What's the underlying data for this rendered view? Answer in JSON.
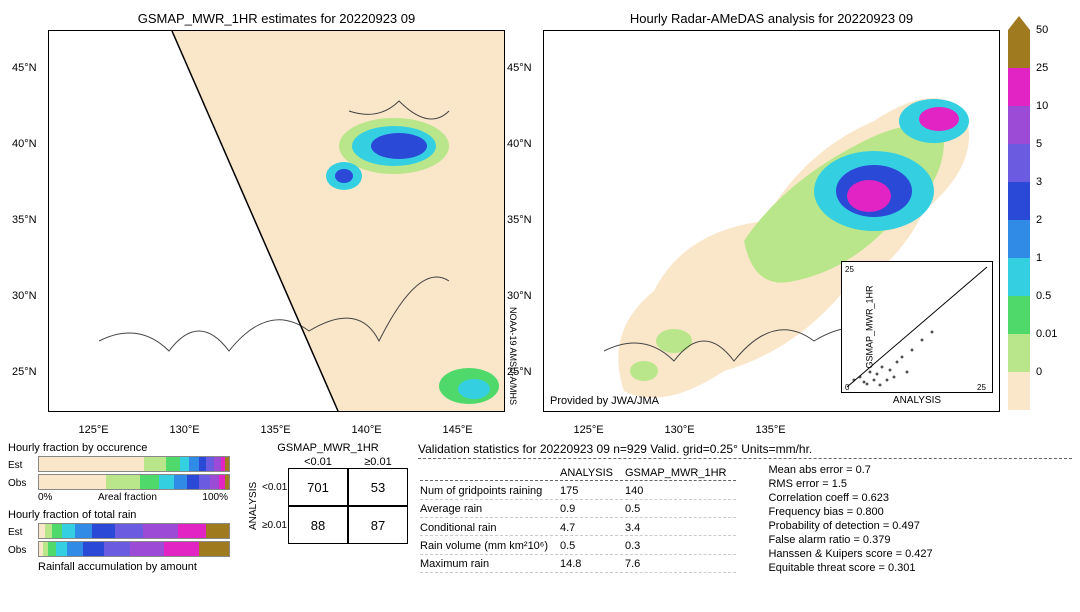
{
  "left_map": {
    "title": "GSMAP_MWR_1HR estimates for 20220923 09",
    "lat_ticks": [
      "45°N",
      "40°N",
      "35°N",
      "30°N",
      "25°N"
    ],
    "lon_ticks": [
      "125°E",
      "130°E",
      "135°E",
      "140°E",
      "145°E"
    ],
    "side_text": "NOAA-19\nAMSU-A/MHS",
    "background_color": "#fae6c8",
    "swath_color": "#ffffff"
  },
  "right_map": {
    "title": "Hourly Radar-AMeDAS analysis for 20220923 09",
    "lat_ticks": [
      "45°N",
      "40°N",
      "35°N",
      "30°N",
      "25°N"
    ],
    "lon_ticks": [
      "125°E",
      "130°E",
      "135°E"
    ],
    "provided": "Provided by JWA/JMA",
    "inset": {
      "xlabel": "ANALYSIS",
      "ylabel": "GSMAP_MWR_1HR",
      "xlim": [
        0,
        25
      ],
      "ylim": [
        0,
        25
      ],
      "ticks": [
        0,
        5,
        10,
        15,
        20,
        25
      ]
    }
  },
  "colorbar": {
    "labels": [
      "50",
      "25",
      "10",
      "5",
      "3",
      "2",
      "1",
      "0.5",
      "0.01",
      "0"
    ],
    "colors": [
      "#a07a1f",
      "#e224c4",
      "#9b4bd6",
      "#6a5be0",
      "#2a49d6",
      "#2f8be6",
      "#35cfe2",
      "#4fd96a",
      "#b9e68a",
      "#fae6c8"
    ]
  },
  "fractions": {
    "occ_title": "Hourly fraction by occurence",
    "rain_title": "Hourly fraction of total rain",
    "accum_title": "Rainfall accumulation by amount",
    "rows": [
      "Est",
      "Obs"
    ],
    "axis": [
      "0%",
      "Areal fraction",
      "100%"
    ],
    "occ_est": [
      0.55,
      0.12,
      0.07,
      0.05,
      0.05,
      0.04,
      0.04,
      0.04,
      0.02,
      0.02
    ],
    "occ_obs": [
      0.35,
      0.18,
      0.1,
      0.08,
      0.07,
      0.06,
      0.06,
      0.05,
      0.03,
      0.02
    ],
    "rain_est": [
      0.03,
      0.04,
      0.05,
      0.07,
      0.09,
      0.12,
      0.15,
      0.18,
      0.15,
      0.12
    ],
    "rain_obs": [
      0.02,
      0.03,
      0.04,
      0.06,
      0.08,
      0.11,
      0.14,
      0.18,
      0.18,
      0.16
    ],
    "palette": [
      "#fae6c8",
      "#b9e68a",
      "#4fd96a",
      "#35cfe2",
      "#2f8be6",
      "#2a49d6",
      "#6a5be0",
      "#9b4bd6",
      "#e224c4",
      "#a07a1f"
    ]
  },
  "contingency": {
    "title": "GSMAP_MWR_1HR",
    "col_headers": [
      "<0.01",
      "≥0.01"
    ],
    "row_headers": [
      "<0.01",
      "≥0.01"
    ],
    "y_axis": "ANALYSIS",
    "cells": [
      [
        701,
        53
      ],
      [
        88,
        87
      ]
    ]
  },
  "stats": {
    "title": "Validation statistics for 20220923 09  n=929 Valid. grid=0.25° Units=mm/hr.",
    "col_headers": [
      "",
      "ANALYSIS",
      "GSMAP_MWR_1HR"
    ],
    "rows": [
      [
        "Num of gridpoints raining",
        "175",
        "140"
      ],
      [
        "Average rain",
        "0.9",
        "0.5"
      ],
      [
        "Conditional rain",
        "4.7",
        "3.4"
      ],
      [
        "Rain volume (mm km²10⁶)",
        "0.5",
        "0.3"
      ],
      [
        "Maximum rain",
        "14.8",
        "7.6"
      ]
    ],
    "scores": [
      "Mean abs error =    0.7",
      "RMS error =    1.5",
      "Correlation coeff =  0.623",
      "Frequency bias =  0.800",
      "Probability of detection =  0.497",
      "False alarm ratio =  0.379",
      "Hanssen & Kuipers score =  0.427",
      "Equitable threat score =  0.301"
    ]
  }
}
